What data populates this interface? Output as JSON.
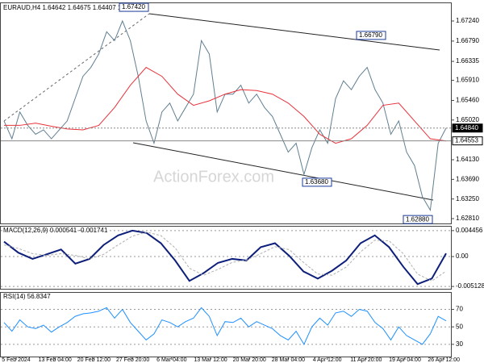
{
  "chart_data": [
    {
      "type": "line",
      "title": "EURAUD,H4 1.64642 1.64675 1.64407 1.64553",
      "watermark": "ActionForex.com",
      "ylim": [
        1.6272,
        1.6762
      ],
      "yticks": [
        {
          "value": 1.6724,
          "label": "1.67240"
        },
        {
          "value": 1.6679,
          "label": "1.66790"
        },
        1.66335,
        {
          "value": 1.6591,
          "label": "1.65910"
        },
        {
          "value": 1.6546,
          "label": "1.65460"
        },
        {
          "value": 1.6502,
          "label": "1.65020"
        },
        {
          "value": 1.6413,
          "label": "1.64130"
        },
        {
          "value": 1.6369,
          "label": "1.63690"
        },
        {
          "value": 1.6325,
          "label": "1.63250"
        },
        {
          "value": 1.6281,
          "label": "1.62810"
        }
      ],
      "series": [
        {
          "color": "#5f7f91",
          "values": [
            1.65,
            1.646,
            1.652,
            1.649,
            1.647,
            1.648,
            1.646,
            1.648,
            1.65,
            1.655,
            1.66,
            1.662,
            1.665,
            1.67,
            1.668,
            1.6724,
            1.668,
            1.66,
            1.65,
            1.645,
            1.652,
            1.654,
            1.65,
            1.653,
            1.656,
            1.668,
            1.665,
            1.652,
            1.656,
            1.656,
            1.658,
            1.654,
            1.656,
            1.653,
            1.651,
            1.647,
            1.643,
            1.645,
            1.638,
            1.644,
            1.648,
            1.645,
            1.655,
            1.659,
            1.657,
            1.66,
            1.662,
            1.657,
            1.654,
            1.647,
            1.65,
            1.643,
            1.64,
            1.633,
            1.63,
            1.645,
            1.6484
          ]
        },
        {
          "color": "#e8313a",
          "values": [
            1.649,
            1.649,
            1.6495,
            1.6488,
            1.6482,
            1.648,
            1.649,
            1.653,
            1.658,
            1.662,
            1.66,
            1.656,
            1.6535,
            1.6545,
            1.656,
            1.657,
            1.6568,
            1.656,
            1.654,
            1.651,
            1.647,
            1.645,
            1.646,
            1.649,
            1.6535,
            1.654,
            1.65,
            1.646,
            1.6455
          ]
        }
      ],
      "annotations": [
        {
          "value": 1.6742,
          "label": "1.67420"
        },
        {
          "value": 1.6679,
          "label": "1.66790"
        },
        {
          "value": 1.6368,
          "label": "1.63680"
        },
        {
          "value": 1.6288,
          "label": "1.62880"
        }
      ],
      "price_labels": [
        {
          "value": 1.6484,
          "label": "1.64840"
        },
        {
          "value": 1.64553,
          "label": "1.64553"
        }
      ]
    },
    {
      "type": "line",
      "title": "MACD(12,26,9) 0.000541 -0.001741",
      "ylim": [
        -0.00553,
        0.00527
      ],
      "yticks": [
        0.004456,
        {
          "value": 0,
          "label": "0.00"
        },
        -0.005128
      ],
      "series": [
        {
          "color": "#0d1f7a",
          "values": [
            0.00256,
            0.00067,
            -0.0004,
            0.0004,
            0.00121,
            -0.00121,
            -0.0004,
            0.00202,
            0.00364,
            0.00445,
            0.00405,
            0.00229,
            -0.00067,
            -0.00418,
            -0.00283,
            -0.00108,
            -0.0004,
            -0.00067,
            0.00162,
            0.00229,
            0.00013,
            -0.00256,
            -0.00378,
            -0.00243,
            -0.00067,
            0.00229,
            0.00364,
            0.00162,
            -0.00175,
            -0.00472,
            -0.00378,
            0.00054
          ]
        },
        {
          "color": "#b0b0b0",
          "values": [
            0.002,
            0.0014,
            0.0005,
            0.0002,
            0.0005,
            0.0002,
            -0.0004,
            0.0004,
            0.002,
            0.0035,
            0.0042,
            0.0036,
            0.0015,
            -0.002,
            -0.0032,
            -0.0022,
            -0.001,
            -0.0006,
            0.0005,
            0.0017,
            0.0012,
            -0.001,
            -0.003,
            -0.0032,
            -0.0018,
            0.0008,
            0.0028,
            0.0027,
            0.0005,
            -0.003,
            -0.0042,
            -0.0025
          ]
        }
      ]
    },
    {
      "type": "line",
      "title": "RSI(14) 56.8347",
      "ylim": [
        16,
        89
      ],
      "yticks": [
        70,
        50,
        30
      ],
      "series": [
        {
          "color": "#1e90ff",
          "values": [
            55,
            45,
            58,
            50,
            48,
            52,
            44,
            50,
            55,
            62,
            65,
            66,
            68,
            72,
            60,
            70,
            55,
            45,
            35,
            42,
            58,
            55,
            50,
            56,
            60,
            72,
            62,
            40,
            56,
            55,
            60,
            50,
            56,
            52,
            48,
            40,
            35,
            45,
            30,
            50,
            60,
            52,
            66,
            68,
            62,
            70,
            68,
            55,
            48,
            35,
            50,
            40,
            35,
            30,
            42,
            62,
            57
          ]
        }
      ],
      "x_labels": [
        "5 Feb 2024",
        "13 Feb 04:00",
        "20 Feb 12:00",
        "27 Feb 20:00",
        "6 Mar 04:00",
        "13 Mar 12:00",
        "20 Mar 20:00",
        "28 Mar 04:00",
        "4 Apr 12:00",
        "11 Apr 20:00",
        "19 Apr 04:00",
        "26 Apr 12:00"
      ]
    }
  ]
}
